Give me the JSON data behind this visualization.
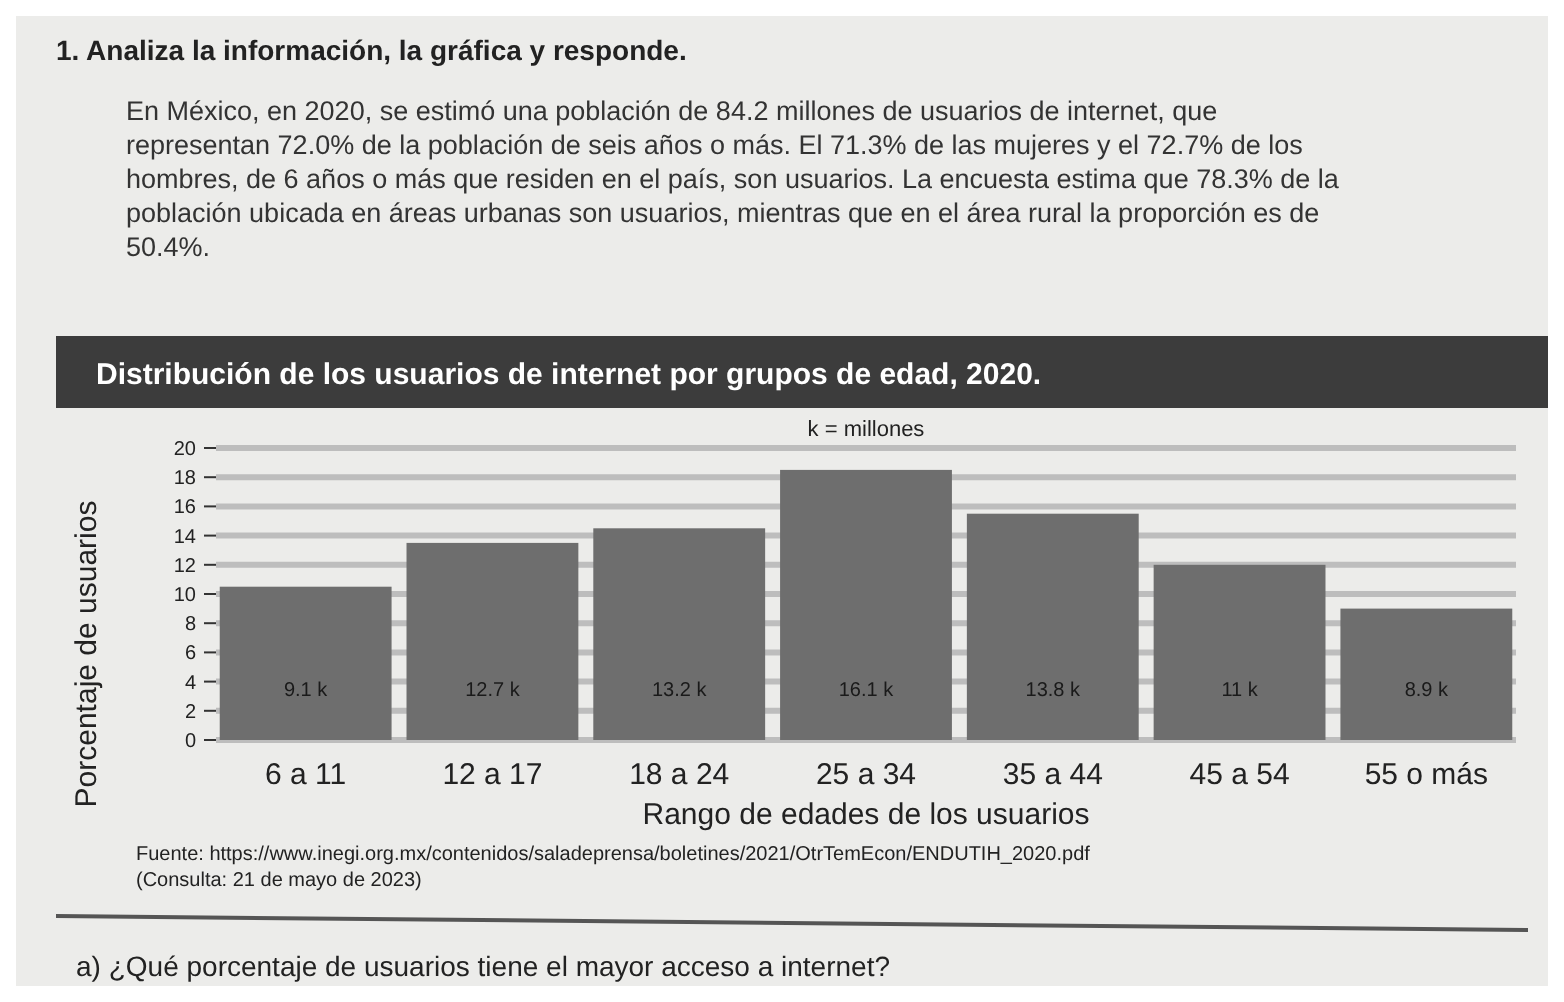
{
  "chart_data": {
    "type": "bar",
    "title": "Distribución de los usuarios de internet por grupos de edad, 2020.",
    "xlabel": "Rango de edades de los usuarios",
    "ylabel": "Porcentaje de usuarios",
    "categories": [
      "6 a 11",
      "12 a 17",
      "18 a 24",
      "25 a 34",
      "35 a 44",
      "45 a 54",
      "55 o más"
    ],
    "values": [
      10.5,
      13.5,
      14.5,
      18.5,
      15.5,
      12,
      9
    ],
    "color": "#6e6e6e",
    "ylim": [
      0,
      20
    ],
    "yticks": [
      0,
      2,
      4,
      6,
      8,
      10,
      12,
      14,
      16,
      18,
      20
    ],
    "grid": "y",
    "annotations": [
      "1. Analiza la información, la gráfica y responde.",
      "En México, en 2020, se estimó una población de 84.2 millones de usuarios de internet, que representan 72.0% de la población de seis años o más. El 71.3% de las mujeres y el 72.7% de los hombres, de 6 años o más que residen en el país, son usuarios. La encuesta estima que 78.3% de la población ubicada en áreas urbanas son usuarios, mientras que en el área rural la proporción es de 50.4%.",
      "k = millones",
      "Fuente: https://www.inegi.org.mx/contenidos/saladeprensa/boletines/2021/OtrTemEcon/ENDUTIH_2020.pdf",
      "(Consulta: 21 de mayo de 2023)",
      "a) ¿Qué porcentaje de usuarios tiene el mayor acceso a internet?",
      "9.1 k",
      "12.7 k",
      "13.2 k",
      "16.1 k",
      "13.8 k",
      "11 k",
      "8.9 k"
    ]
  }
}
